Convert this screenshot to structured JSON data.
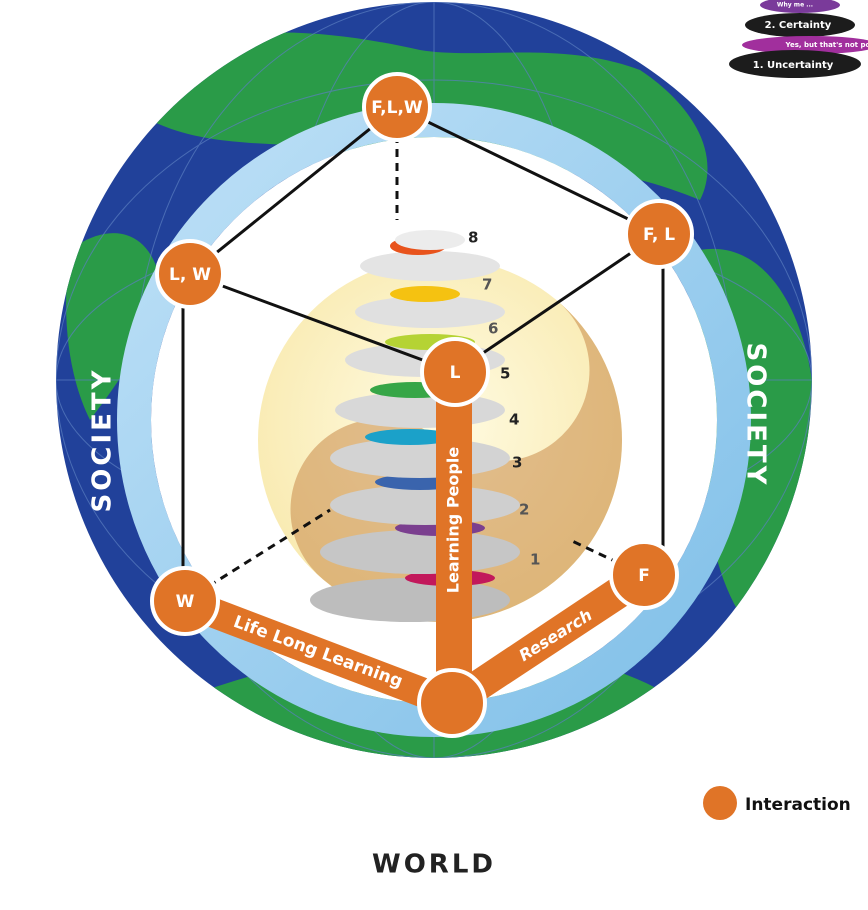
{
  "top_stack": {
    "items": [
      "Why me ...",
      "2. Certainty",
      "Yes, but that's not pos",
      "1. Uncertainty"
    ]
  },
  "nodes": [
    {
      "label": "F,L,W"
    },
    {
      "label": "F, L"
    },
    {
      "label": "L, W"
    },
    {
      "label": "L"
    },
    {
      "label": "W"
    },
    {
      "label": "F"
    }
  ],
  "spiral_levels": [
    1,
    2,
    3,
    4,
    5,
    6,
    7,
    8
  ],
  "side_labels": [
    "SOCIETY",
    "SOCIETY"
  ],
  "paths": [
    "Learning People",
    "Life Long Learning",
    "Research"
  ],
  "legend": {
    "label": "Interaction"
  },
  "footer": "WORLD"
}
